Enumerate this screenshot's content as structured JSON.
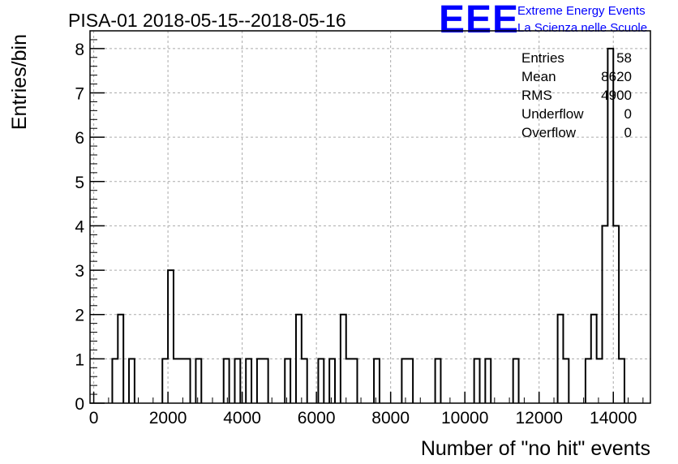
{
  "chart_data": {
    "type": "bar",
    "title": "PISA-01 2018-05-15--2018-05-16",
    "xlabel": "Number of \"no hit\" events",
    "ylabel": "Entries/bin",
    "xlim": [
      -100,
      15000
    ],
    "ylim": [
      0,
      8.4
    ],
    "bin_width": 150,
    "x_ticks": [
      "0",
      "2000",
      "4000",
      "6000",
      "8000",
      "10000",
      "12000",
      "14000"
    ],
    "y_ticks": [
      "0",
      "1",
      "2",
      "3",
      "4",
      "5",
      "6",
      "7",
      "8"
    ],
    "grid": true,
    "bins": [
      {
        "x": 500,
        "count": 1
      },
      {
        "x": 650,
        "count": 2
      },
      {
        "x": 950,
        "count": 1
      },
      {
        "x": 1850,
        "count": 1
      },
      {
        "x": 2000,
        "count": 3
      },
      {
        "x": 2150,
        "count": 1
      },
      {
        "x": 2300,
        "count": 1
      },
      {
        "x": 2450,
        "count": 1
      },
      {
        "x": 2750,
        "count": 1
      },
      {
        "x": 3500,
        "count": 1
      },
      {
        "x": 3800,
        "count": 1
      },
      {
        "x": 4100,
        "count": 1
      },
      {
        "x": 4400,
        "count": 1
      },
      {
        "x": 4550,
        "count": 1
      },
      {
        "x": 5150,
        "count": 1
      },
      {
        "x": 5450,
        "count": 2
      },
      {
        "x": 5600,
        "count": 1
      },
      {
        "x": 6050,
        "count": 1
      },
      {
        "x": 6350,
        "count": 1
      },
      {
        "x": 6650,
        "count": 2
      },
      {
        "x": 6800,
        "count": 1
      },
      {
        "x": 6950,
        "count": 1
      },
      {
        "x": 7550,
        "count": 1
      },
      {
        "x": 8300,
        "count": 1
      },
      {
        "x": 8450,
        "count": 1
      },
      {
        "x": 9200,
        "count": 1
      },
      {
        "x": 10250,
        "count": 1
      },
      {
        "x": 10550,
        "count": 1
      },
      {
        "x": 11300,
        "count": 1
      },
      {
        "x": 12500,
        "count": 2
      },
      {
        "x": 12650,
        "count": 1
      },
      {
        "x": 13250,
        "count": 1
      },
      {
        "x": 13400,
        "count": 2
      },
      {
        "x": 13550,
        "count": 1
      },
      {
        "x": 13700,
        "count": 4
      },
      {
        "x": 13850,
        "count": 8
      },
      {
        "x": 14000,
        "count": 4
      },
      {
        "x": 14150,
        "count": 1
      }
    ]
  },
  "stats_box": {
    "rows": [
      {
        "label": "Entries",
        "value": "58"
      },
      {
        "label": "Mean",
        "value": "8620"
      },
      {
        "label": "RMS",
        "value": "4900"
      },
      {
        "label": "Underflow",
        "value": "0"
      },
      {
        "label": "Overflow",
        "value": "0"
      }
    ]
  },
  "logo": {
    "mark": "EEE",
    "line1": "Extreme Energy Events",
    "line2": "La Scienza nelle Scuole",
    "color": "#0000ff"
  }
}
